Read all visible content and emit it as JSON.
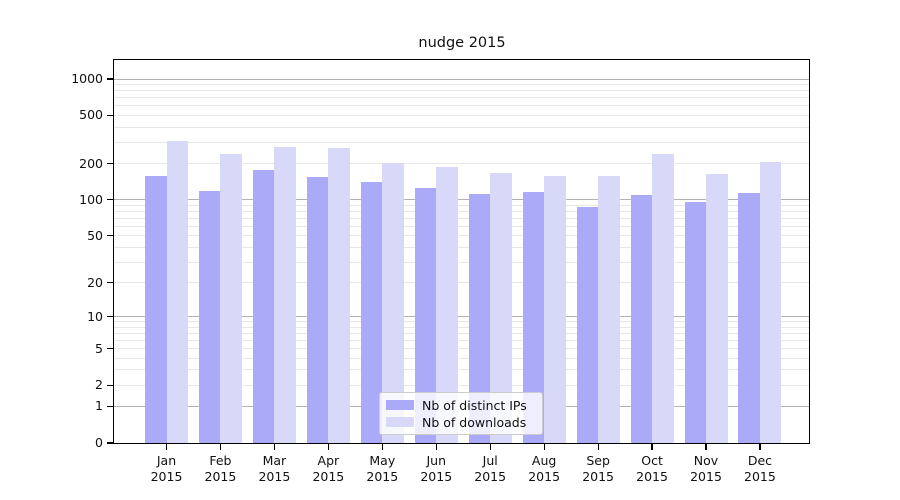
{
  "title": "nudge 2015",
  "colors": {
    "distinct_ips_bar": "#aaaaf8",
    "downloads_bar": "#d8d8f8",
    "major_gridline": "#b2b2b2",
    "minor_gridline": "#e7e7e7",
    "axis_spine": "#000000",
    "legend_border": "#cccccc",
    "text": "#111111"
  },
  "legend": {
    "items": [
      {
        "label": "Nb of distinct IPs",
        "color_key": "distinct_ips_bar"
      },
      {
        "label": "Nb of downloads",
        "color_key": "downloads_bar"
      }
    ]
  },
  "y_axis": {
    "scale": "log1p",
    "labeled_ticks": [
      "1000",
      "500",
      "200",
      "100",
      "50",
      "20",
      "10",
      "5",
      "2",
      "1",
      "0"
    ],
    "labeled_tick_values": [
      1000,
      500,
      200,
      100,
      50,
      20,
      10,
      5,
      2,
      1,
      0
    ],
    "major_gridline_values": [
      1,
      10,
      100,
      1000
    ],
    "minor_gridline_values": [
      2,
      3,
      4,
      5,
      6,
      7,
      8,
      9,
      20,
      30,
      40,
      50,
      60,
      70,
      80,
      90,
      200,
      300,
      400,
      500,
      600,
      700,
      800,
      900
    ]
  },
  "x_axis": {
    "tick_labels": [
      [
        "Jan",
        "2015"
      ],
      [
        "Feb",
        "2015"
      ],
      [
        "Mar",
        "2015"
      ],
      [
        "Apr",
        "2015"
      ],
      [
        "May",
        "2015"
      ],
      [
        "Jun",
        "2015"
      ],
      [
        "Jul",
        "2015"
      ],
      [
        "Aug",
        "2015"
      ],
      [
        "Sep",
        "2015"
      ],
      [
        "Oct",
        "2015"
      ],
      [
        "Nov",
        "2015"
      ],
      [
        "Dec",
        "2015"
      ]
    ]
  },
  "chart_data": {
    "type": "bar",
    "title": "nudge 2015",
    "categories": [
      "Jan 2015",
      "Feb 2015",
      "Mar 2015",
      "Apr 2015",
      "May 2015",
      "Jun 2015",
      "Jul 2015",
      "Aug 2015",
      "Sep 2015",
      "Oct 2015",
      "Nov 2015",
      "Dec 2015"
    ],
    "series": [
      {
        "name": "Nb of distinct IPs",
        "color_key": "distinct_ips_bar",
        "values": [
          159,
          119,
          177,
          155,
          140,
          126,
          111,
          117,
          87,
          110,
          96,
          114
        ]
      },
      {
        "name": "Nb of downloads",
        "color_key": "downloads_bar",
        "values": [
          310,
          242,
          276,
          268,
          204,
          189,
          166,
          158,
          158,
          242,
          165,
          206
        ]
      }
    ],
    "yscale": "log1p",
    "yticks": [
      0,
      1,
      2,
      5,
      10,
      20,
      50,
      100,
      200,
      500,
      1000
    ],
    "ylim": [
      0,
      1435
    ],
    "xlabel": "",
    "ylabel": "",
    "grid": "on",
    "legend_position": "lower-center-inside"
  }
}
